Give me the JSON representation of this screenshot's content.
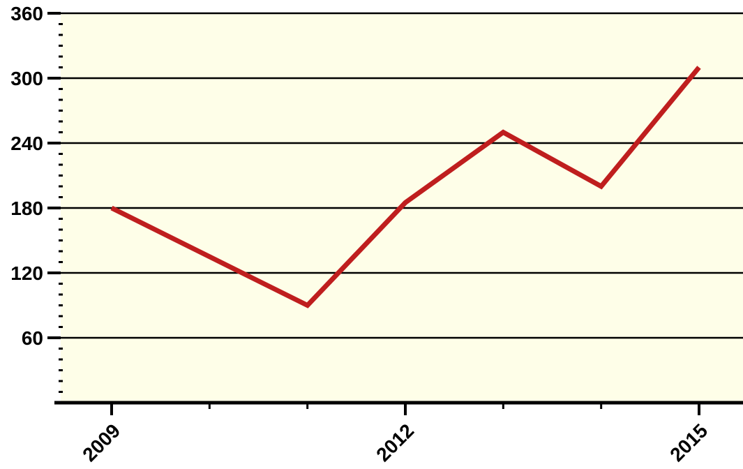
{
  "chart_data": {
    "type": "line",
    "title": "",
    "xlabel": "",
    "ylabel": "",
    "x": [
      2009,
      2010,
      2011,
      2012,
      2013,
      2014,
      2015
    ],
    "series": [
      {
        "values": [
          180,
          135,
          90,
          185,
          250,
          200,
          310
        ],
        "color": "#bf1e1e"
      }
    ],
    "xlim": [
      2009,
      2015
    ],
    "ylim": [
      0,
      360
    ],
    "y_ticks": [
      60,
      120,
      180,
      240,
      300,
      360
    ],
    "x_tick_labels": [
      "2009",
      "2012",
      "2015"
    ],
    "x_minor_ticks": [
      2010,
      2011,
      2013,
      2014
    ],
    "grid": "horizontal",
    "legend": "none",
    "colors": {
      "plot_background": "#fefee8",
      "gridline": "#000000",
      "axis": "#000000"
    }
  }
}
